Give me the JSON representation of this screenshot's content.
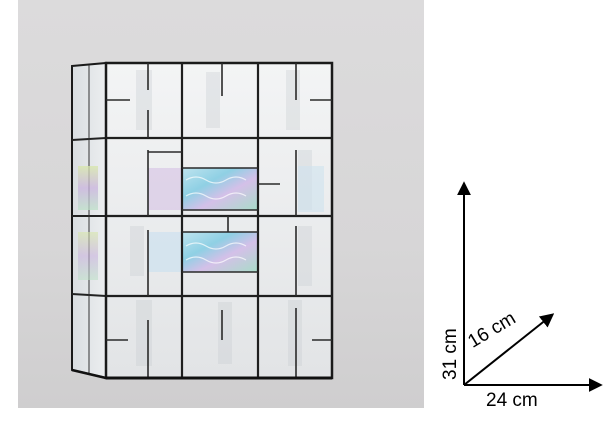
{
  "photo": {
    "subject_icon": "stained-glass-lamp-box-photo",
    "background_color": "#d8d7d8",
    "frame_color": "#1a1a1a",
    "glass_color": "#eef0f1",
    "iridescent_colors": [
      "#9fd7e6",
      "#c9a7d9",
      "#a7d9c4"
    ]
  },
  "dimensions": {
    "height_label": "31 cm",
    "depth_label": "16 cm",
    "width_label": "24 cm",
    "arrow_color": "#000000"
  }
}
